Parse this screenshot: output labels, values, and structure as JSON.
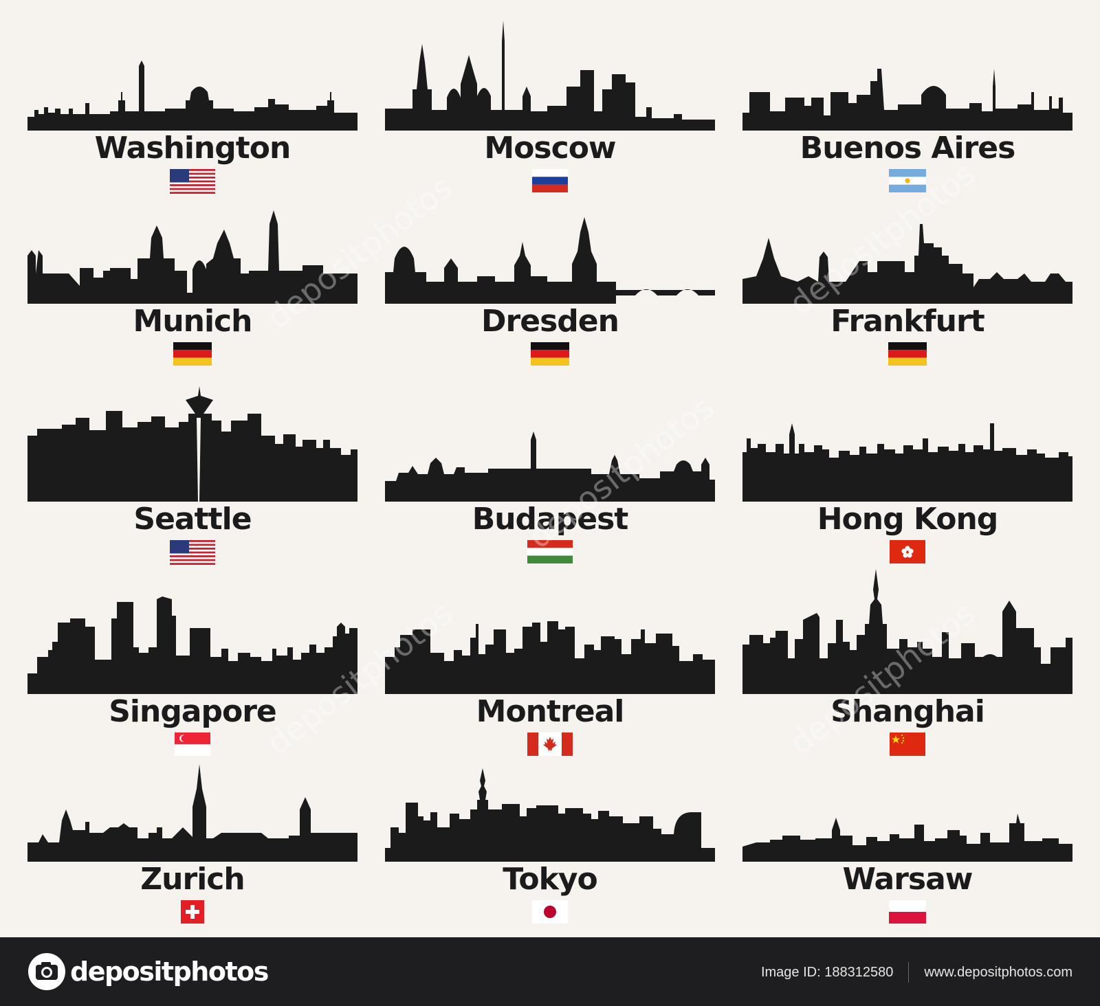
{
  "cities": [
    {
      "name": "Washington",
      "flag": "usa"
    },
    {
      "name": "Moscow",
      "flag": "russia"
    },
    {
      "name": "Buenos Aires",
      "flag": "argentina"
    },
    {
      "name": "Munich",
      "flag": "germany"
    },
    {
      "name": "Dresden",
      "flag": "germany"
    },
    {
      "name": "Frankfurt",
      "flag": "germany"
    },
    {
      "name": "Seattle",
      "flag": "usa"
    },
    {
      "name": "Budapest",
      "flag": "hungary"
    },
    {
      "name": "Hong Kong",
      "flag": "hongkong"
    },
    {
      "name": "Singapore",
      "flag": "singapore"
    },
    {
      "name": "Montreal",
      "flag": "canada"
    },
    {
      "name": "Shanghai",
      "flag": "china"
    },
    {
      "name": "Zurich",
      "flag": "switzerland"
    },
    {
      "name": "Tokyo",
      "flag": "japan"
    },
    {
      "name": "Warsaw",
      "flag": "poland"
    }
  ],
  "watermark": "depositphotos",
  "footer": {
    "brand": "depositphotos",
    "image_id": "Image ID: 188312580",
    "url": "www.depositphotos.com"
  },
  "colors": {
    "background": "#f6f3ef",
    "silhouette": "#1b1b1b",
    "footer": "#1e1d1f"
  }
}
